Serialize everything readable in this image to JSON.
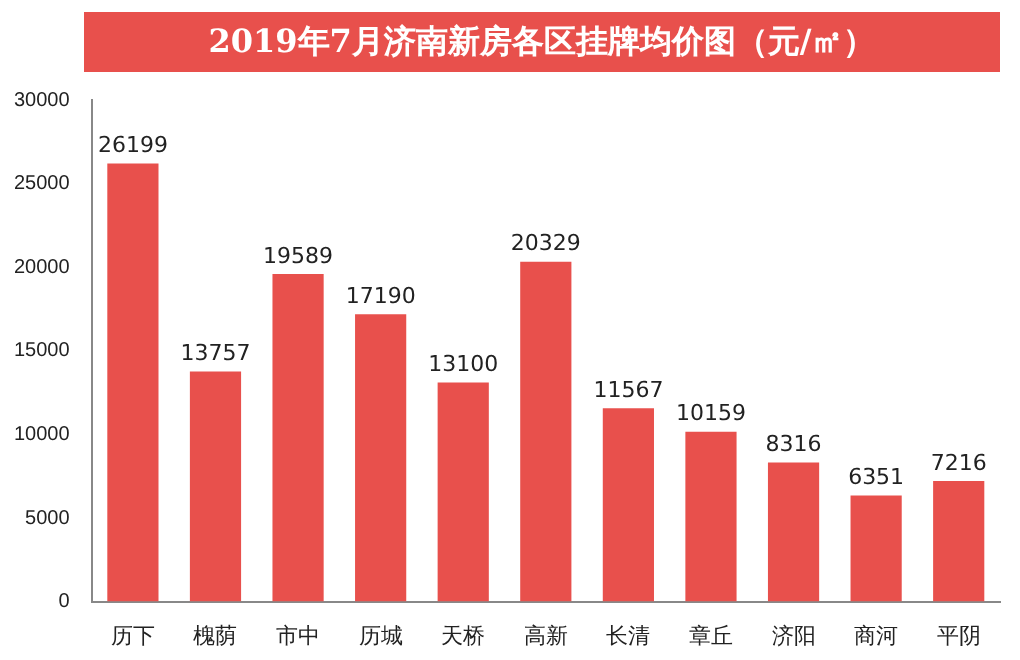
{
  "chart_data": {
    "type": "bar",
    "title": "2019年7月济南新房各区挂牌均价图（元/㎡）",
    "categories": [
      "历下",
      "槐荫",
      "市中",
      "历城",
      "天桥",
      "高新",
      "长清",
      "章丘",
      "济阳",
      "商河",
      "平阴"
    ],
    "values": [
      26199,
      13757,
      19589,
      17190,
      13100,
      20329,
      11567,
      10159,
      8316,
      6351,
      7216
    ],
    "color": "#e8504c",
    "ylim": [
      0,
      30000
    ],
    "yticks": [
      0,
      5000,
      10000,
      15000,
      20000,
      25000,
      30000
    ],
    "grid": false,
    "data_labels": true
  }
}
